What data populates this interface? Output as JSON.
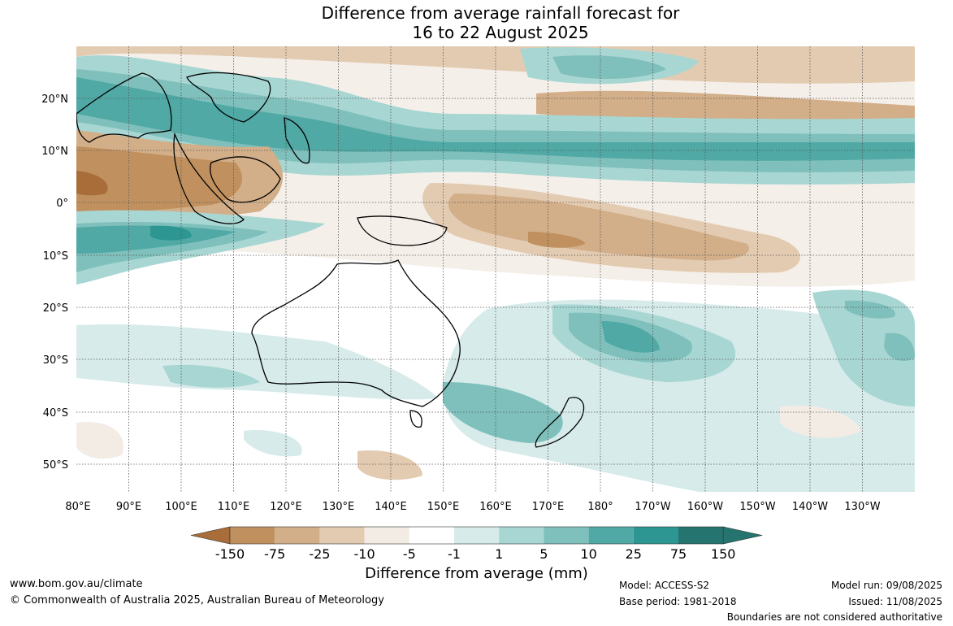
{
  "title_line1": "Difference from average rainfall forecast for",
  "title_line2": "16 to 22 August 2025",
  "lat_labels": [
    "20°N",
    "10°N",
    "0°",
    "10°S",
    "20°S",
    "30°S",
    "40°S",
    "50°S"
  ],
  "lon_labels": [
    "80°E",
    "90°E",
    "100°E",
    "110°E",
    "120°E",
    "130°E",
    "140°E",
    "150°E",
    "160°E",
    "170°E",
    "180°",
    "170°W",
    "160°W",
    "150°W",
    "140°W",
    "130°W"
  ],
  "colorbar": {
    "ticks": [
      "-150",
      "-75",
      "-25",
      "-10",
      "-5",
      "-1",
      "1",
      "5",
      "10",
      "25",
      "75",
      "150"
    ],
    "colors": [
      "#a86d38",
      "#c0915f",
      "#d2ae89",
      "#e3cbb1",
      "#f3ece5",
      "#ffffff",
      "#d6ebea",
      "#a8d6d3",
      "#7fc0bc",
      "#50a9a5",
      "#2e9692",
      "#25746f"
    ],
    "title": "Difference from average (mm)"
  },
  "footer": {
    "website": "www.bom.gov.au/climate",
    "copyright": "© Commonwealth of Australia 2025, Australian Bureau of Meteorology",
    "model": "Model: ACCESS-S2",
    "base_period": "Base period: 1981-2018",
    "model_run": "Model run: 09/08/2025",
    "issued": "Issued: 11/08/2025",
    "disclaimer": "Boundaries are not considered authoritative"
  }
}
